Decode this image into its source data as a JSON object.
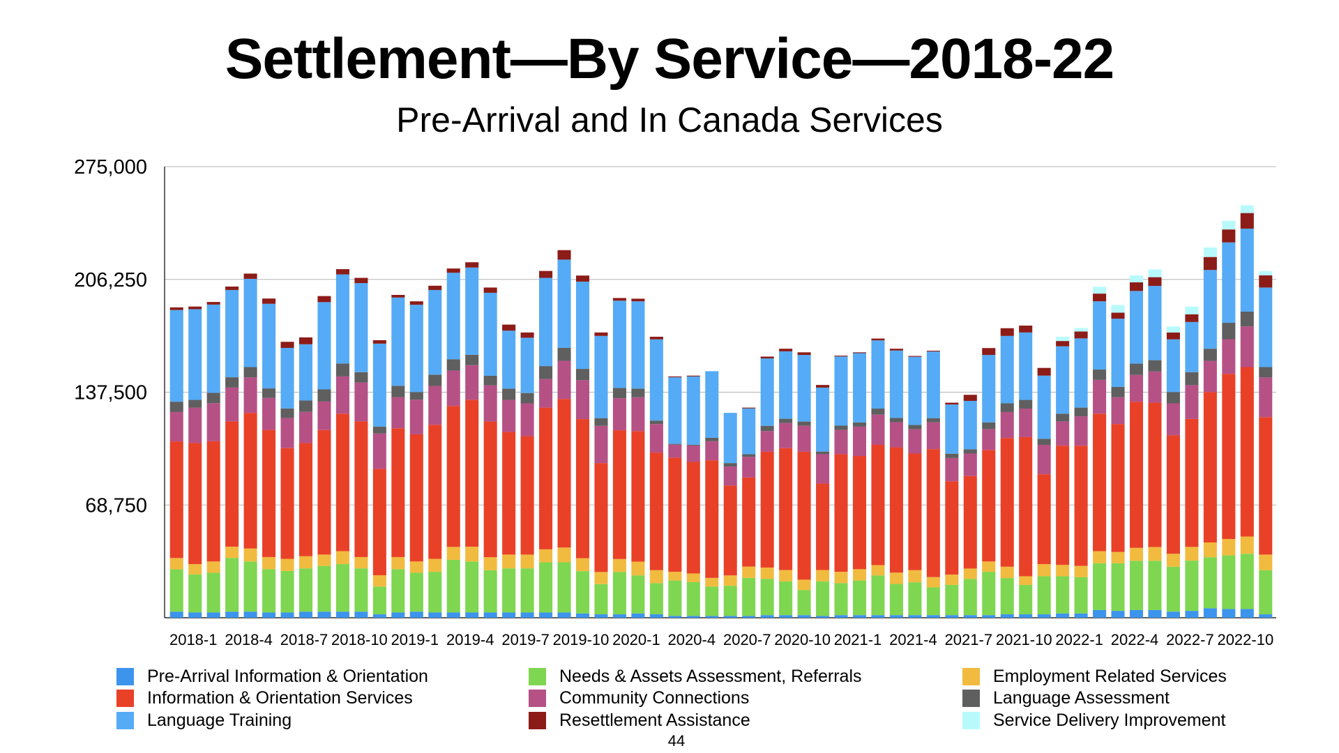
{
  "chart_data": {
    "type": "bar",
    "stacked": true,
    "title": "Settlement—By Service—2018-22",
    "subtitle": "Pre-Arrival and In Canada Services",
    "xlabel": "",
    "ylabel": "",
    "ylim": [
      0,
      275000
    ],
    "yticks": [
      68750,
      137500,
      206250,
      275000
    ],
    "ytick_labels": [
      "68,750",
      "137,500",
      "206,250",
      "275,000"
    ],
    "grid": true,
    "legend_position": "bottom",
    "xtick_labels": [
      "2018-1",
      "2018-4",
      "2018-7",
      "2018-10",
      "2019-1",
      "2019-4",
      "2019-7",
      "2019-10",
      "2020-1",
      "2020-4",
      "2020-7",
      "2020-10",
      "2021-1",
      "2021-4",
      "2021-7",
      "2021-10",
      "2022-1",
      "2022-4",
      "2022-7",
      "2022-10"
    ],
    "categories": [
      "2018-1",
      "2018-2",
      "2018-3",
      "2018-4",
      "2018-5",
      "2018-6",
      "2018-7",
      "2018-8",
      "2018-9",
      "2018-10",
      "2018-11",
      "2018-12",
      "2019-1",
      "2019-2",
      "2019-3",
      "2019-4",
      "2019-5",
      "2019-6",
      "2019-7",
      "2019-8",
      "2019-9",
      "2019-10",
      "2019-11",
      "2019-12",
      "2020-1",
      "2020-2",
      "2020-3",
      "2020-4",
      "2020-5",
      "2020-6",
      "2020-7",
      "2020-8",
      "2020-9",
      "2020-10",
      "2020-11",
      "2020-12",
      "2021-1",
      "2021-2",
      "2021-3",
      "2021-4",
      "2021-5",
      "2021-6",
      "2021-7",
      "2021-8",
      "2021-9",
      "2021-10",
      "2021-11",
      "2021-12",
      "2022-1",
      "2022-2",
      "2022-3",
      "2022-4",
      "2022-5",
      "2022-6",
      "2022-7",
      "2022-8",
      "2022-9",
      "2022-10",
      "2022-11",
      "2022-12"
    ],
    "series": [
      {
        "name": "Pre-Arrival Information & Orientation",
        "color": "#3d94ec",
        "values": [
          3700,
          3200,
          3200,
          3700,
          3700,
          3200,
          3200,
          3700,
          3700,
          3700,
          3700,
          2100,
          3200,
          3700,
          3200,
          3200,
          3200,
          3200,
          3200,
          3200,
          3200,
          3200,
          2600,
          2100,
          2100,
          2600,
          2100,
          1100,
          1100,
          1100,
          1100,
          1100,
          1600,
          1600,
          1600,
          1100,
          1600,
          1600,
          1600,
          1600,
          1600,
          1600,
          1600,
          1600,
          1600,
          2100,
          2100,
          2100,
          2600,
          2600,
          4700,
          4200,
          4700,
          4700,
          3700,
          4200,
          5800,
          5300,
          5300,
          2100
        ]
      },
      {
        "name": "Needs & Assets Assessment, Referrals",
        "color": "#7fd651",
        "values": [
          25800,
          23200,
          24200,
          32700,
          30600,
          26400,
          25300,
          26400,
          27900,
          29000,
          26400,
          16900,
          26400,
          23700,
          24800,
          32100,
          31100,
          25800,
          26900,
          26900,
          30600,
          30600,
          25800,
          18400,
          25800,
          23200,
          19000,
          21600,
          20600,
          17900,
          18400,
          23200,
          22100,
          20600,
          15300,
          21100,
          19500,
          21100,
          24200,
          19000,
          20000,
          16900,
          18400,
          22100,
          26400,
          22100,
          17900,
          23200,
          22700,
          22100,
          28500,
          29000,
          30000,
          30000,
          27400,
          30600,
          31100,
          32700,
          33700,
          26900
        ]
      },
      {
        "name": "Employment Related Services",
        "color": "#f1bb3f",
        "values": [
          6900,
          6300,
          6900,
          6900,
          7900,
          7400,
          7400,
          7400,
          6900,
          7900,
          6900,
          6900,
          7400,
          6900,
          7900,
          7900,
          9000,
          7900,
          8400,
          8400,
          7900,
          9000,
          7900,
          7400,
          7900,
          8400,
          7900,
          5300,
          5300,
          5300,
          6300,
          6900,
          6900,
          6900,
          6300,
          6900,
          6900,
          6900,
          6300,
          6900,
          7400,
          6300,
          6300,
          6300,
          6300,
          6900,
          5300,
          7400,
          6900,
          6900,
          7400,
          6900,
          7900,
          8400,
          7900,
          8400,
          9000,
          10000,
          10500,
          9500
        ]
      },
      {
        "name": "Information & Orientation Services",
        "color": "#e94128",
        "values": [
          71100,
          73800,
          73300,
          76400,
          82700,
          77500,
          67500,
          69000,
          75900,
          83800,
          82700,
          64800,
          78500,
          77500,
          81700,
          85900,
          89600,
          82700,
          74800,
          72200,
          86400,
          90600,
          84800,
          66400,
          78500,
          79600,
          71700,
          69600,
          68000,
          71700,
          54800,
          54300,
          70600,
          74300,
          78000,
          52700,
          71700,
          69000,
          73300,
          76400,
          71100,
          78000,
          56900,
          56400,
          68000,
          78500,
          84800,
          54800,
          72700,
          73300,
          83800,
          78000,
          89100,
          88000,
          72200,
          78000,
          91700,
          100700,
          103300,
          83800
        ]
      },
      {
        "name": "Community Connections",
        "color": "#b65186",
        "values": [
          17900,
          21600,
          23200,
          20600,
          21600,
          19500,
          18400,
          19000,
          17400,
          22700,
          23700,
          21600,
          19000,
          21100,
          23700,
          21600,
          21100,
          22100,
          19500,
          20000,
          17400,
          23200,
          23700,
          22700,
          19500,
          20600,
          17400,
          7900,
          10000,
          11600,
          11600,
          12600,
          12600,
          15300,
          15800,
          17900,
          14800,
          17900,
          18400,
          15300,
          14800,
          16300,
          14200,
          13700,
          12600,
          15800,
          17400,
          17900,
          14800,
          17900,
          20600,
          16300,
          16300,
          19000,
          19500,
          20600,
          19000,
          21100,
          24800,
          24200
        ]
      },
      {
        "name": "Language Assessment",
        "color": "#5f5f5f",
        "values": [
          6300,
          4700,
          6300,
          6300,
          6300,
          5800,
          5800,
          6900,
          7400,
          7900,
          6300,
          4200,
          6900,
          4700,
          6900,
          6900,
          6300,
          5800,
          6900,
          6300,
          7900,
          7900,
          6900,
          4700,
          6300,
          5300,
          2100,
          500,
          500,
          2100,
          2100,
          1600,
          3200,
          2600,
          2600,
          1600,
          2600,
          2600,
          3700,
          2600,
          2600,
          2600,
          2600,
          2600,
          4200,
          5300,
          5300,
          3700,
          4700,
          5300,
          6300,
          6300,
          6900,
          6900,
          6900,
          7900,
          7400,
          10000,
          9000,
          6300
        ]
      },
      {
        "name": "Language Training",
        "color": "#55abf6",
        "values": [
          55900,
          55300,
          53800,
          53200,
          53800,
          51600,
          36900,
          34300,
          53200,
          54300,
          54300,
          50600,
          53800,
          53200,
          51600,
          52700,
          53200,
          50600,
          35300,
          33700,
          53800,
          53800,
          53200,
          50100,
          53200,
          53200,
          49500,
          40600,
          41600,
          40600,
          30600,
          27900,
          41100,
          41100,
          40600,
          39000,
          42200,
          42200,
          41600,
          41100,
          41600,
          40600,
          30000,
          29500,
          41100,
          41100,
          41100,
          38500,
          41100,
          42200,
          41600,
          41600,
          44300,
          45300,
          32100,
          30600,
          48000,
          49000,
          50600,
          48500
        ]
      },
      {
        "name": "Resettlement Assistance",
        "color": "#8c1c18",
        "values": [
          1600,
          1600,
          1600,
          2100,
          3200,
          3200,
          3700,
          4200,
          3700,
          3200,
          3200,
          2100,
          1600,
          2100,
          2600,
          2600,
          3200,
          3200,
          3700,
          3200,
          4200,
          5800,
          3700,
          2100,
          1600,
          1600,
          1600,
          500,
          500,
          0,
          0,
          500,
          1100,
          1600,
          1600,
          1600,
          500,
          500,
          1100,
          1100,
          500,
          500,
          1100,
          3700,
          4200,
          4700,
          4200,
          4700,
          3200,
          4200,
          4700,
          3700,
          5300,
          5300,
          4200,
          4700,
          7900,
          7900,
          9500,
          7400
        ]
      },
      {
        "name": "Service Delivery Improvement",
        "color": "#b8fafc",
        "values": [
          0,
          0,
          0,
          0,
          0,
          0,
          0,
          0,
          0,
          0,
          0,
          0,
          0,
          0,
          0,
          0,
          0,
          0,
          0,
          0,
          0,
          0,
          0,
          0,
          0,
          0,
          0,
          0,
          0,
          0,
          0,
          0,
          0,
          0,
          0,
          0,
          0,
          0,
          0,
          0,
          0,
          0,
          0,
          0,
          0,
          0,
          0,
          0,
          2600,
          2100,
          4200,
          4700,
          4200,
          4700,
          3700,
          4700,
          5800,
          5300,
          4700,
          2600
        ]
      }
    ]
  },
  "page_number": "44"
}
